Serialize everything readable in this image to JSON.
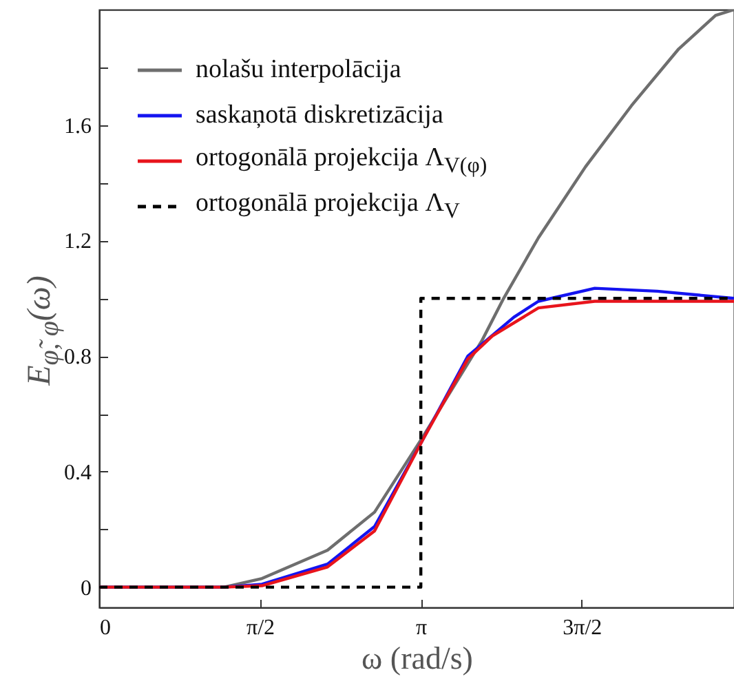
{
  "chart_data": {
    "type": "line",
    "xlabel": "ω (rad/s)",
    "ylabel": "E$_{φ̃, φ}$(ω)",
    "xlim": [
      0,
      6.2
    ],
    "ylim": [
      -0.07,
      2.0
    ],
    "xticks": [
      0,
      {
        "value": 1.5708,
        "label": "π/2"
      },
      {
        "value": 3.1416,
        "label": "π"
      },
      {
        "value": 4.7124,
        "label": "3π/2"
      }
    ],
    "yticks": [
      0,
      {
        "value": 0.2,
        "label": null
      },
      0.4,
      {
        "value": 0.6,
        "label": null
      },
      0.8,
      {
        "value": 1.0,
        "label": null
      },
      1.2,
      {
        "value": 1.4,
        "label": null
      },
      1.6,
      {
        "value": 1.8,
        "label": null
      }
    ],
    "grid": false,
    "legend": "top left",
    "marker": "none",
    "series": [
      {
        "name": "nolašu interpolācija",
        "color": "#6e6e6e",
        "line_style": "solid",
        "x": [
          0,
          0.8,
          1.22,
          1.59,
          2.23,
          2.69,
          3.16,
          3.74,
          3.95,
          4.29,
          4.75,
          5.2,
          5.66,
          6.02,
          6.2
        ],
        "values": [
          0,
          0,
          0,
          0.03,
          0.128,
          0.26,
          0.52,
          0.855,
          1.0,
          1.21,
          1.456,
          1.668,
          1.864,
          1.98,
          2.0
        ]
      },
      {
        "name": "saskaņotā diskretizācija",
        "color": "#1414f0",
        "line_style": "solid",
        "x": [
          0,
          0.8,
          1.22,
          1.59,
          2.23,
          2.69,
          3.16,
          3.6,
          4.05,
          4.29,
          4.84,
          5.45,
          6.2
        ],
        "values": [
          0,
          0,
          0,
          0.01,
          0.08,
          0.21,
          0.51,
          0.8,
          0.935,
          0.99,
          1.035,
          1.025,
          1.0
        ]
      },
      {
        "name": "ortogonālā projekcija Λ$_{V(φ)}$",
        "color": "#e8141c",
        "line_style": "solid",
        "x": [
          0,
          0.8,
          1.22,
          1.59,
          2.23,
          2.69,
          3.16,
          3.6,
          3.84,
          4.29,
          4.84,
          5.45,
          6.2
        ],
        "values": [
          0,
          0,
          0,
          0.005,
          0.07,
          0.195,
          0.51,
          0.79,
          0.87,
          0.967,
          0.99,
          0.99,
          0.99
        ]
      },
      {
        "name": "ortogonālā projekcija Λ$_{V}$",
        "color": "#000000",
        "line_style": "dashed",
        "x": [
          0,
          3.1416,
          3.1416,
          6.2
        ],
        "values": [
          0,
          0,
          1,
          1
        ]
      }
    ]
  }
}
